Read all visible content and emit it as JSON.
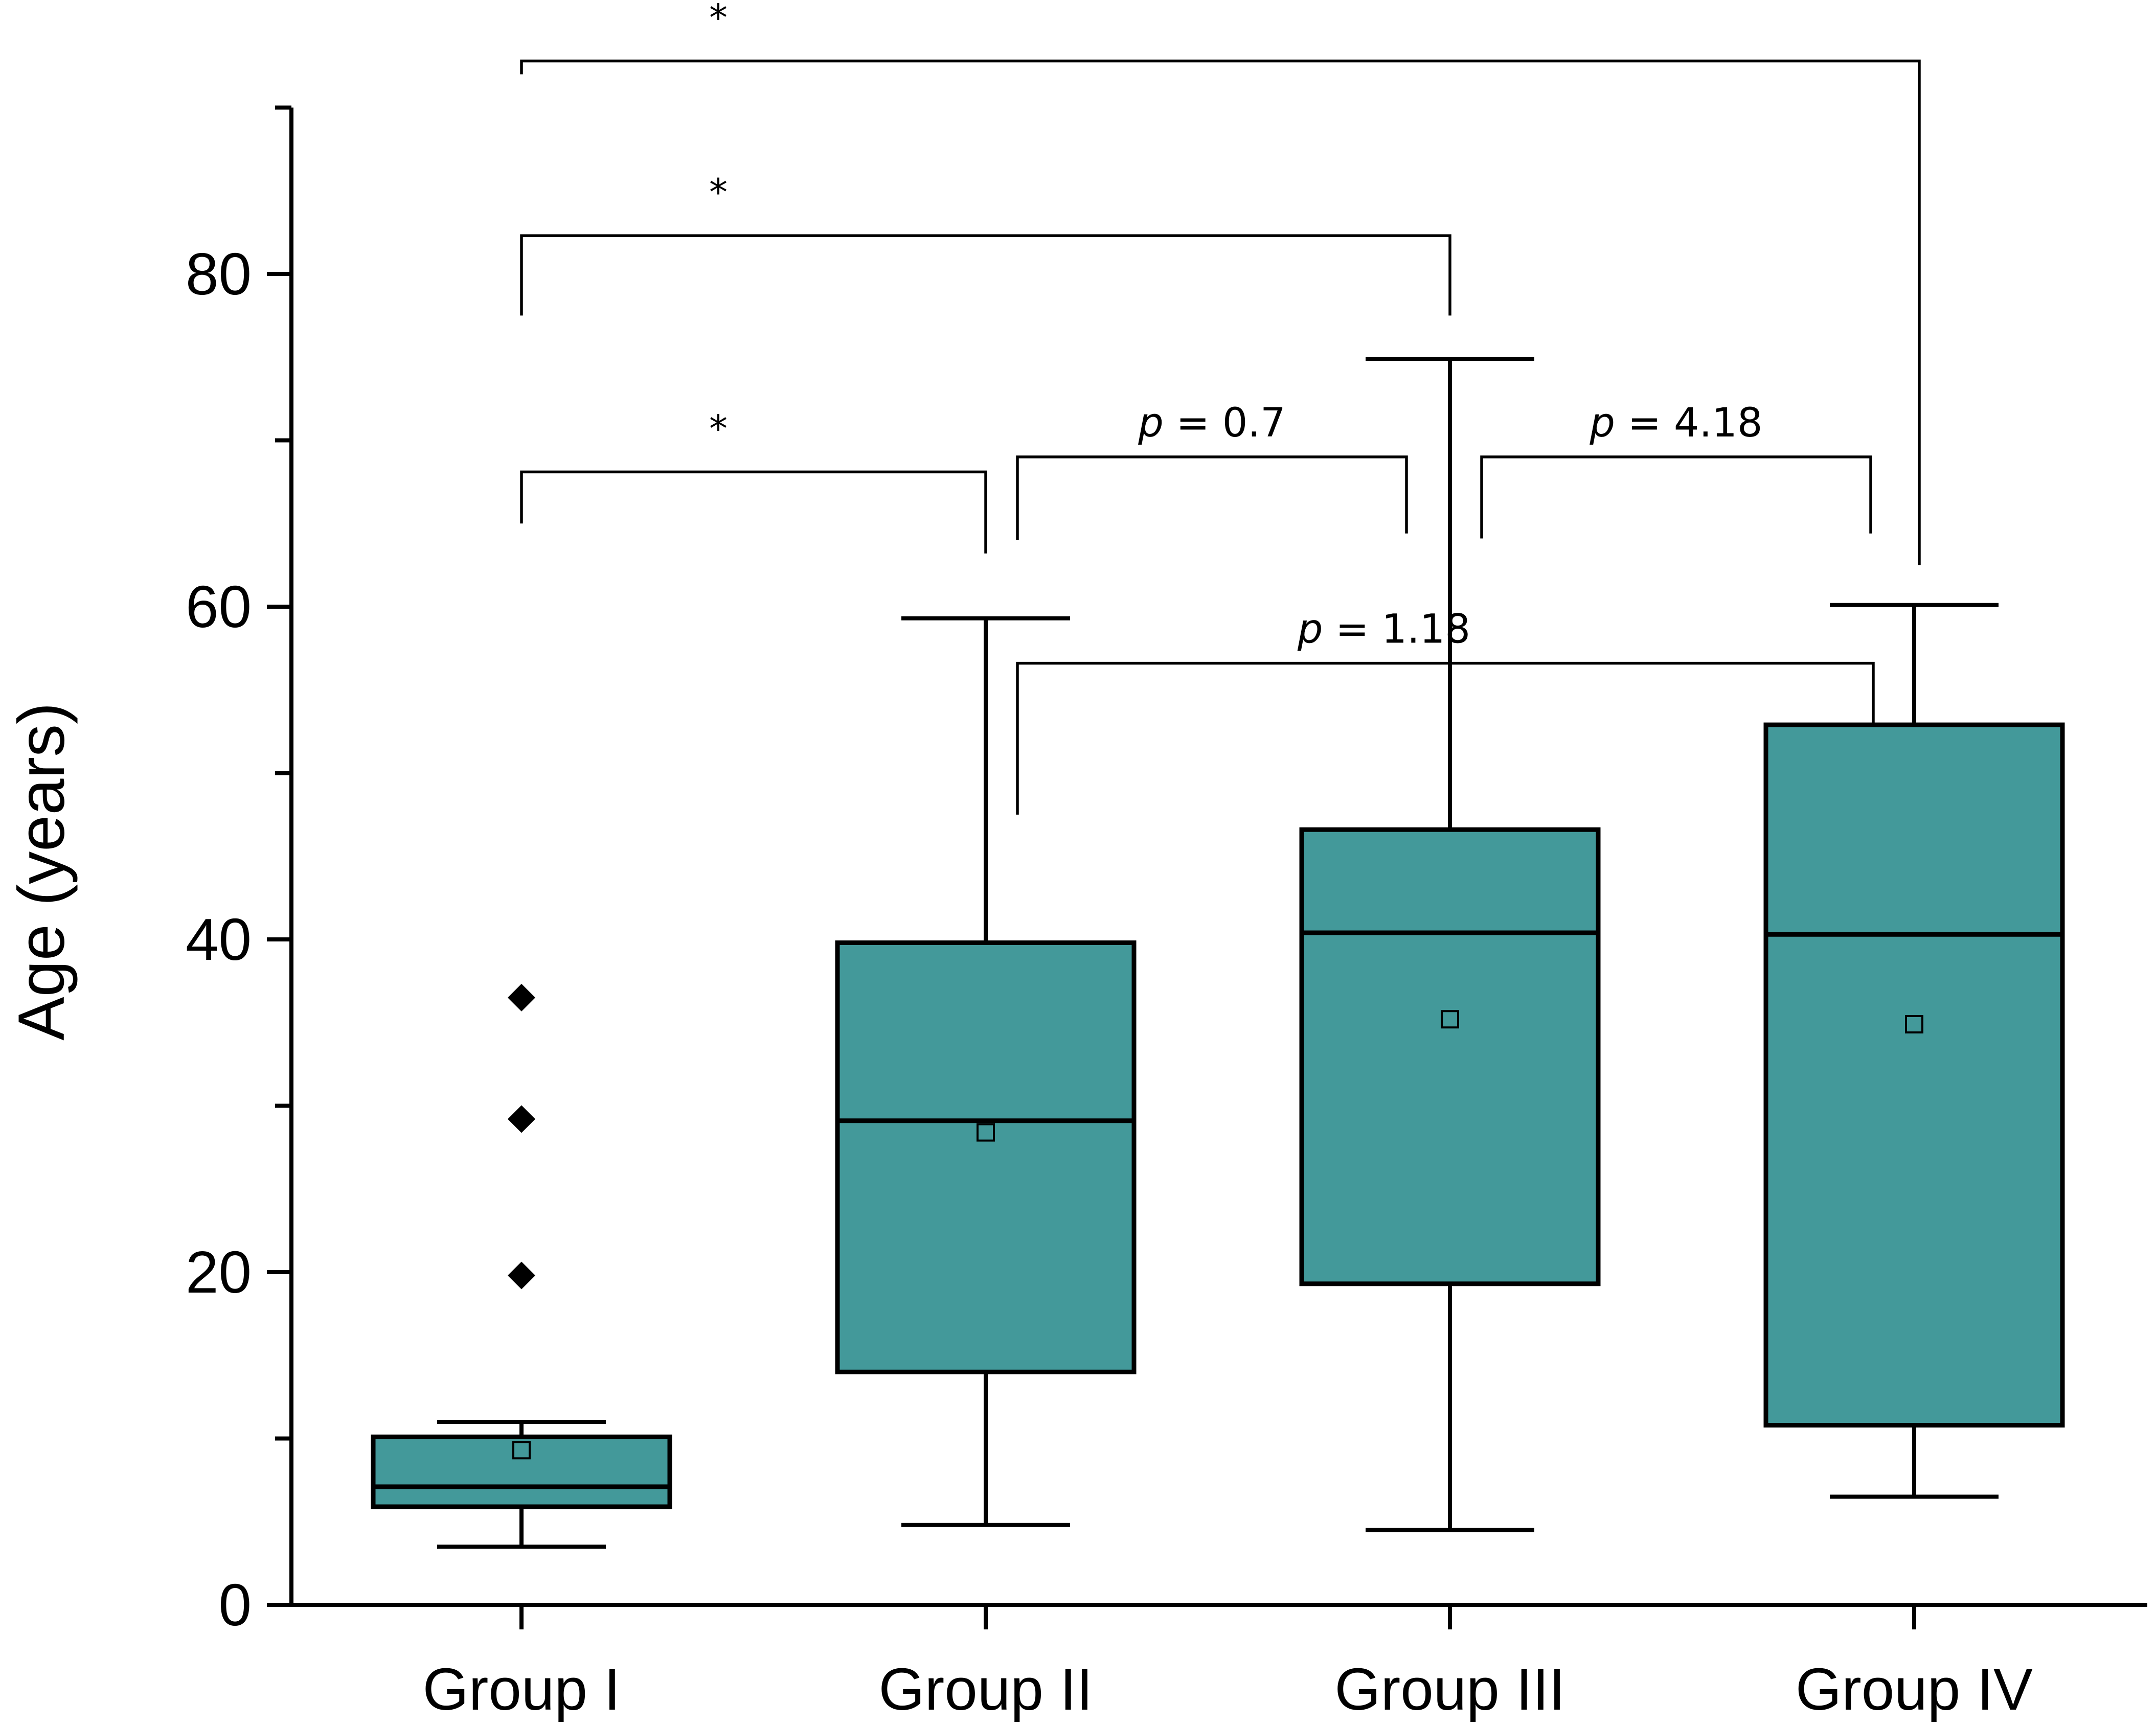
{
  "chart_data": {
    "type": "box",
    "ylabel": "Age (years)",
    "xlabel": "",
    "ylim": [
      0,
      90
    ],
    "yticks_major": [
      0,
      20,
      40,
      60,
      80
    ],
    "yticks_minor": [
      10,
      30,
      50,
      70
    ],
    "colors": {
      "box_fill": "#43999A",
      "line": "#000000"
    },
    "groups": [
      {
        "name": "Group I",
        "whisker_low": 3.5,
        "q1": 5.9,
        "median": 7.1,
        "q3": 10.1,
        "whisker_high": 11.0,
        "mean": 9.3,
        "outliers": [
          19.8,
          29.2,
          36.5
        ]
      },
      {
        "name": "Group II",
        "whisker_low": 4.8,
        "q1": 14.0,
        "median": 29.1,
        "q3": 39.8,
        "whisker_high": 59.3,
        "mean": 28.4,
        "outliers": []
      },
      {
        "name": "Group III",
        "whisker_low": 4.5,
        "q1": 19.3,
        "median": 40.4,
        "q3": 46.6,
        "whisker_high": 74.9,
        "mean": 35.2,
        "outliers": []
      },
      {
        "name": "Group IV",
        "whisker_low": 6.5,
        "q1": 10.8,
        "median": 40.3,
        "q3": 52.9,
        "whisker_high": 60.1,
        "mean": 34.9,
        "outliers": []
      }
    ],
    "comparisons": [
      {
        "from": 0,
        "to": 3,
        "level": 92.8,
        "drop_from": 92.0,
        "drop_to": 62.5,
        "label": "*",
        "italic_p": false
      },
      {
        "from": 0,
        "to": 2,
        "level": 82.3,
        "drop_from": 77.5,
        "drop_to": 77.5,
        "label": "*",
        "italic_p": false
      },
      {
        "from": 0,
        "to": 1,
        "level": 68.1,
        "drop_from": 65.0,
        "drop_to": 63.2,
        "label": "*",
        "italic_p": false
      },
      {
        "from": 1,
        "to": 2,
        "level": 69.0,
        "drop_from": 64.0,
        "drop_to": 64.4,
        "label": "p = 0.7",
        "italic_p": true
      },
      {
        "from": 2,
        "to": 3,
        "level": 69.0,
        "drop_from": 64.1,
        "drop_to": 64.4,
        "label": "p = 4.18",
        "italic_p": true
      },
      {
        "from": 1,
        "to": 3,
        "level": 56.6,
        "drop_from": 47.5,
        "drop_to": 52.1,
        "label": "p = 1.18",
        "italic_p": true
      }
    ]
  }
}
